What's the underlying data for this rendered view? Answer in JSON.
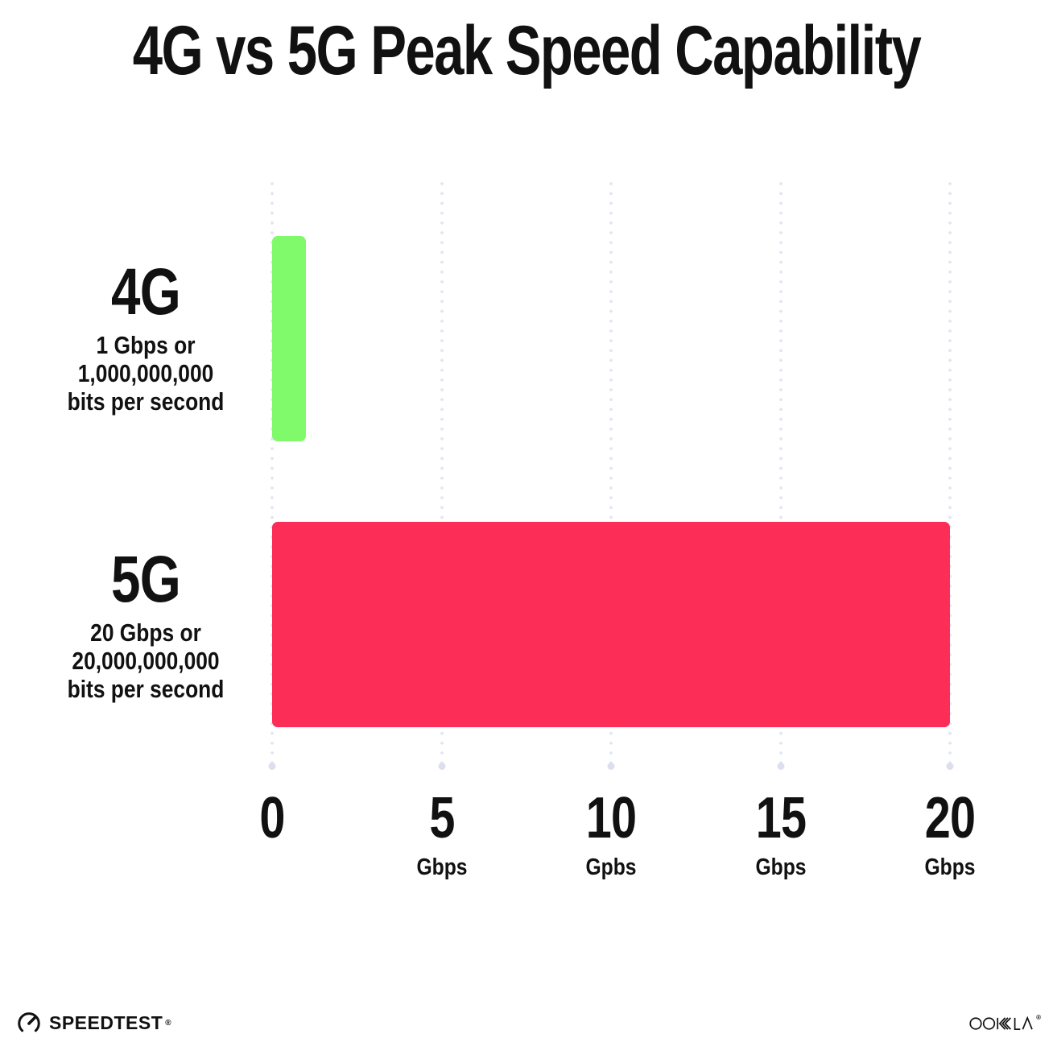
{
  "title": "4G vs 5G Peak Speed Capability",
  "chart_data": {
    "type": "bar",
    "orientation": "horizontal",
    "title": "4G vs 5G Peak Speed Capability",
    "categories": [
      "4G",
      "5G"
    ],
    "values": [
      1,
      20
    ],
    "value_unit": "Gbps",
    "xlim": [
      0,
      20
    ],
    "x_ticks": [
      0,
      5,
      10,
      15,
      20
    ],
    "x_tick_labels": [
      "0",
      "5 Gbps",
      "10 Gpbs",
      "15 Gbps",
      "20 Gbps"
    ],
    "grid": "dotted-vertical",
    "legend": "none",
    "bar_colors": [
      "#80FA6B",
      "#FC2D57"
    ],
    "annotations": [
      "4G: 1 Gbps or 1,000,000,000 bits per second",
      "5G: 20 Gbps or 20,000,000,000 bits per second"
    ]
  },
  "bars": [
    {
      "label": "4G",
      "value": 1,
      "color": "#80FA6B",
      "desc_lines": [
        "1 Gbps or",
        "1,000,000,000",
        "bits per second"
      ]
    },
    {
      "label": "5G",
      "value": 20,
      "color": "#FC2D57",
      "desc_lines": [
        "20 Gbps or",
        "20,000,000,000",
        "bits per second"
      ]
    }
  ],
  "x_axis": {
    "ticks": [
      {
        "number": "0",
        "unit": ""
      },
      {
        "number": "5",
        "unit": "Gbps"
      },
      {
        "number": "10",
        "unit": "Gpbs"
      },
      {
        "number": "15",
        "unit": "Gbps"
      },
      {
        "number": "20",
        "unit": "Gbps"
      }
    ]
  },
  "footer": {
    "speedtest": {
      "label": "SPEEDTEST",
      "trademark": "®"
    },
    "ookla": {
      "label": "OOKLA",
      "trademark": "®"
    }
  },
  "colors": {
    "background": "#FFFFFF",
    "text": "#111111",
    "bar_4g": "#80FA6B",
    "bar_5g": "#FC2D57",
    "grid_dot": "#E3E5F1",
    "grid_dot_end": "#DCDFEE"
  }
}
